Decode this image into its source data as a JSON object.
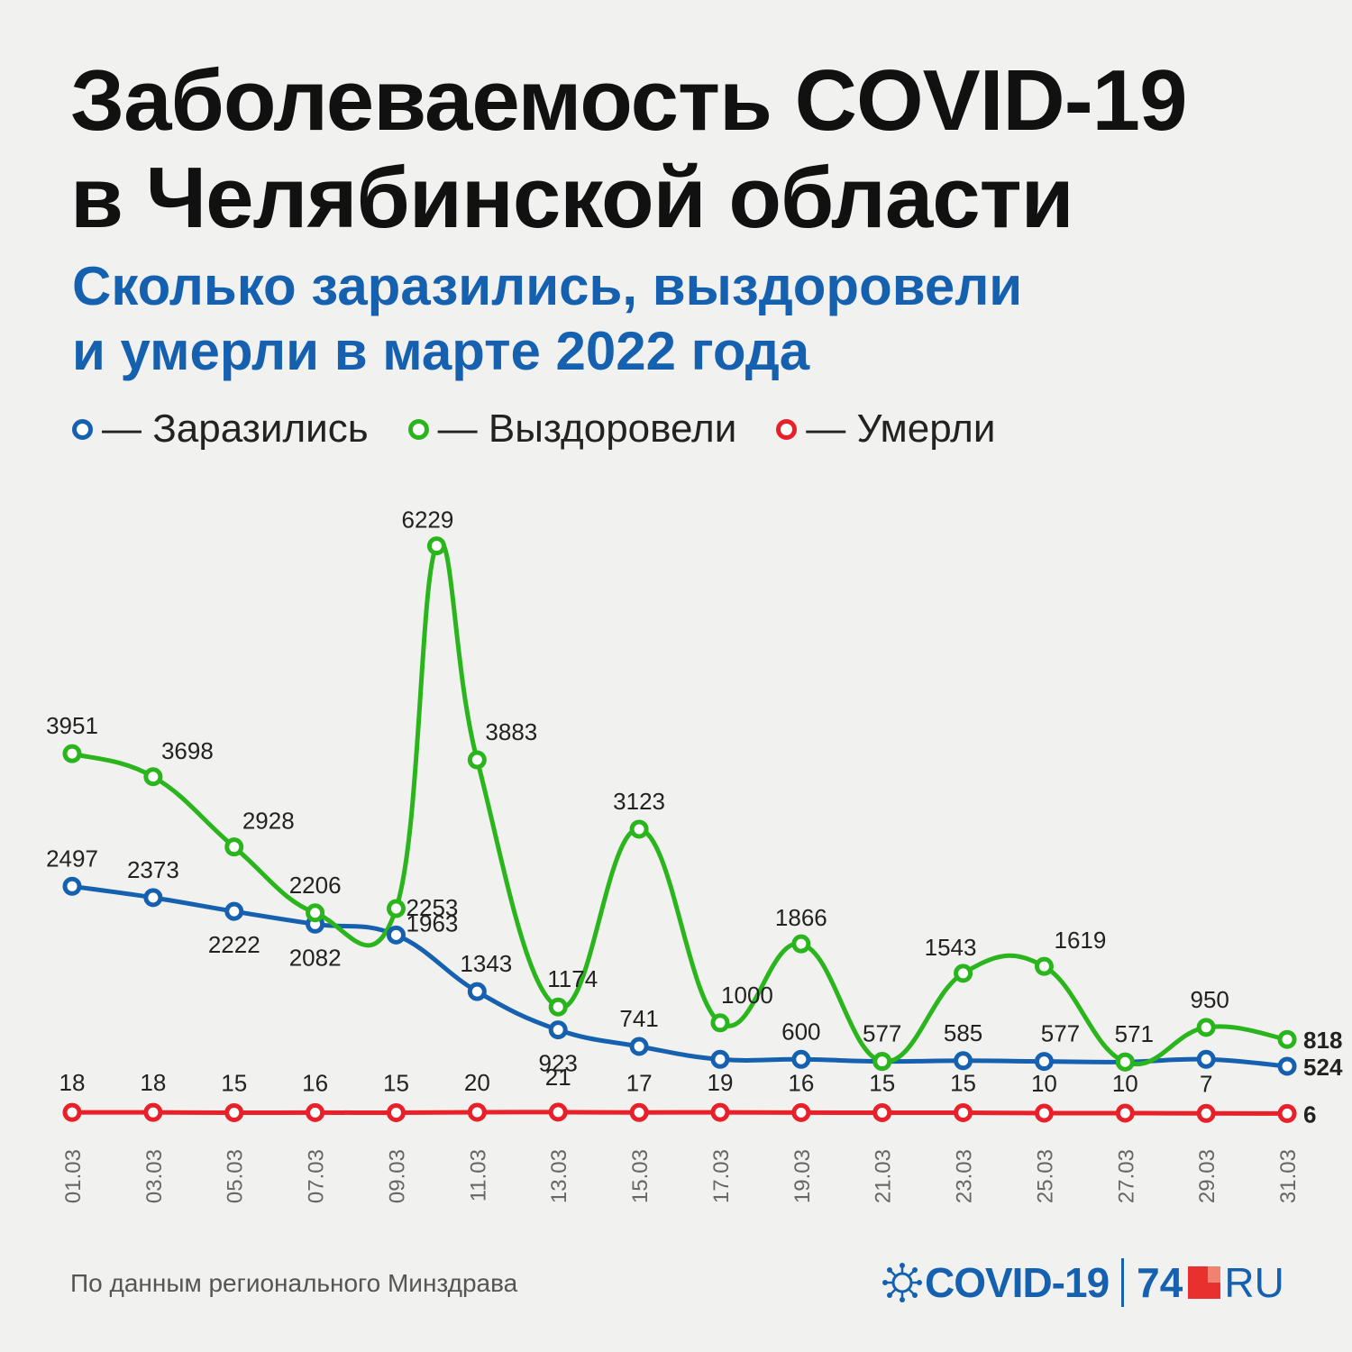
{
  "title": {
    "line1": "Заболеваемость COVID-19",
    "line2": "в Челябинской области"
  },
  "subtitle": {
    "line1": "Сколько заразились, выздоровели",
    "line2": "и умерли в марте 2022 года"
  },
  "legend": [
    {
      "label": "— Заразились",
      "color": "#1660b0"
    },
    {
      "label": "— Выздоровели",
      "color": "#2ab51c"
    },
    {
      "label": "— Умерли",
      "color": "#e8202a"
    }
  ],
  "source": "По данным регионального Минздрава",
  "logo": {
    "brand": "COVID-19",
    "number": "74",
    "suffix": "RU",
    "brand_color": "#1660b0",
    "accent_color": "#e8312f"
  },
  "chart_data": {
    "type": "line",
    "title": "",
    "xlabel": "",
    "ylabel": "",
    "ylim": [
      0,
      6300
    ],
    "grid": false,
    "legend_position": "top-left",
    "x": [
      "01.03",
      "03.03",
      "05.03",
      "07.03",
      "09.03",
      "11.03",
      "13.03",
      "15.03",
      "17.03",
      "19.03",
      "21.03",
      "23.03",
      "25.03",
      "27.03",
      "29.03",
      "31.03"
    ],
    "series": [
      {
        "name": "Заразились",
        "color": "#1660b0",
        "values": [
          2497,
          2373,
          2222,
          2082,
          1963,
          1343,
          923,
          741,
          600,
          600,
          577,
          585,
          577,
          571,
          600,
          524
        ],
        "labels": [
          "2497",
          "2373",
          "2222",
          "2082",
          "1963",
          "1343",
          "923",
          "741",
          "",
          "600",
          "",
          "585",
          "577",
          "571",
          "",
          "524"
        ]
      },
      {
        "name": "Выздоровели",
        "color": "#2ab51c",
        "values": [
          3951,
          3698,
          2928,
          2206,
          2253,
          3883,
          1174,
          3123,
          1000,
          1866,
          577,
          1543,
          1619,
          571,
          950,
          818
        ],
        "labels": [
          "3951",
          "3698",
          "2928",
          "2206",
          "2253",
          "3883",
          "1174",
          "3123",
          "1000",
          "1866",
          "577",
          "1543",
          "1619",
          "",
          "950",
          "818"
        ]
      },
      {
        "name": "Умерли",
        "color": "#e8202a",
        "values": [
          18,
          18,
          15,
          16,
          15,
          20,
          21,
          17,
          19,
          16,
          15,
          15,
          10,
          10,
          7,
          6
        ],
        "labels": [
          "18",
          "18",
          "15",
          "16",
          "15",
          "20",
          "21",
          "17",
          "19",
          "16",
          "15",
          "15",
          "10",
          "10",
          "7",
          "6"
        ]
      }
    ],
    "extra_peaks": [
      {
        "series": "Выздоровели",
        "after_x": "09.03",
        "value": 6229,
        "label": "6229"
      }
    ]
  }
}
